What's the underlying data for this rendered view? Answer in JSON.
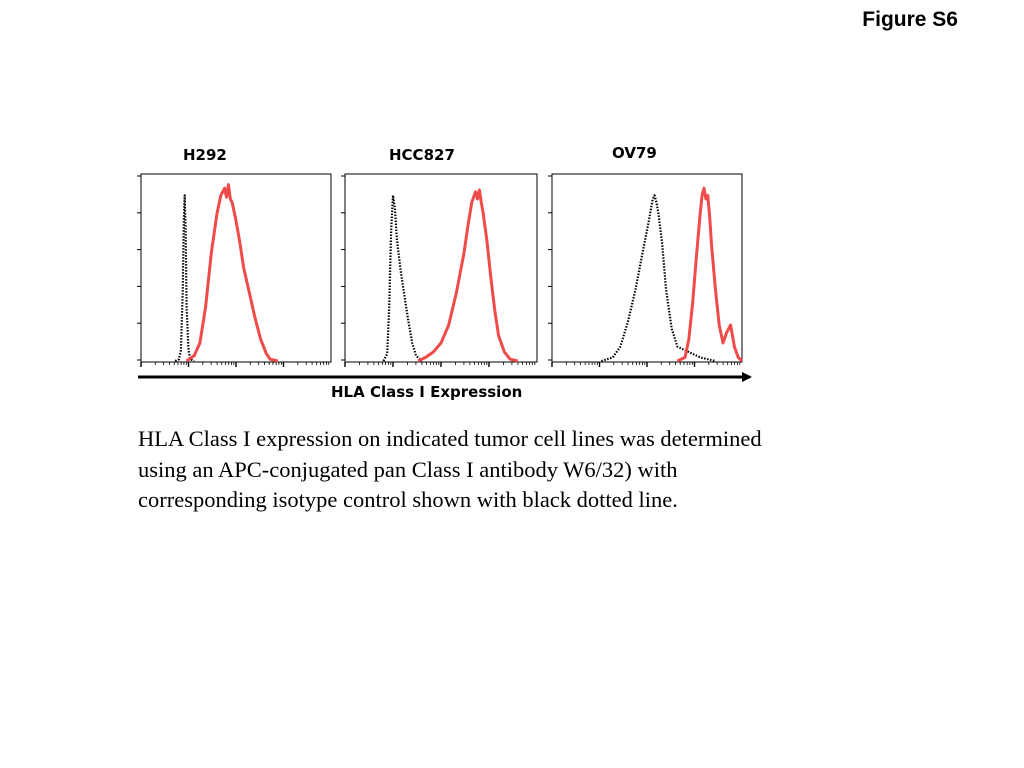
{
  "figure_label": "Figure S6",
  "caption": "HLA Class I expression on indicated tumor cell lines was determined using an APC-conjugated pan Class I antibody W6/32) with corresponding isotype control shown with black dotted line.",
  "colors": {
    "stained": "#f04b4b",
    "isotype": "#000000",
    "axis": "#000000"
  },
  "chart_data": [
    {
      "type": "line",
      "title": "H292",
      "xlabel": "HLA Class I Expression",
      "ylabel": "",
      "xlim": [
        0,
        100
      ],
      "ylim": [
        0,
        100
      ],
      "series": [
        {
          "name": "isotype control",
          "style": "dotted",
          "x": [
            18,
            20,
            21,
            22,
            22.5,
            23,
            23.5,
            24,
            25,
            26,
            28
          ],
          "y": [
            0,
            1,
            6,
            40,
            78,
            92,
            70,
            30,
            6,
            1,
            0
          ]
        },
        {
          "name": "HLA Class I",
          "style": "solid",
          "x": [
            24,
            28,
            31,
            34,
            37,
            40,
            42,
            44,
            45,
            46,
            47,
            48,
            50,
            52,
            54,
            57,
            60,
            63,
            66,
            68,
            72
          ],
          "y": [
            0,
            3,
            10,
            30,
            60,
            82,
            92,
            96,
            91,
            98,
            90,
            88,
            78,
            66,
            52,
            38,
            24,
            12,
            4,
            1,
            0
          ]
        }
      ]
    },
    {
      "type": "line",
      "title": "HCC827",
      "xlabel": "HLA Class I Expression",
      "ylabel": "",
      "xlim": [
        0,
        100
      ],
      "ylim": [
        0,
        100
      ],
      "series": [
        {
          "name": "isotype control",
          "style": "dotted",
          "x": [
            20,
            22,
            23,
            24,
            25,
            26,
            27,
            29,
            31,
            33,
            35,
            37,
            40
          ],
          "y": [
            0,
            4,
            30,
            72,
            92,
            85,
            68,
            50,
            36,
            22,
            10,
            3,
            0
          ]
        },
        {
          "name": "HLA Class I",
          "style": "solid",
          "x": [
            38,
            42,
            46,
            50,
            54,
            58,
            62,
            64,
            66,
            68,
            69,
            70,
            71,
            72,
            74,
            76,
            78,
            80,
            83,
            86,
            90
          ],
          "y": [
            0,
            2,
            5,
            10,
            20,
            38,
            60,
            75,
            88,
            94,
            90,
            95,
            88,
            82,
            66,
            46,
            28,
            14,
            5,
            1,
            0
          ]
        }
      ]
    },
    {
      "type": "line",
      "title": "OV79",
      "xlabel": "HLA Class I Expression",
      "ylabel": "",
      "xlim": [
        0,
        100
      ],
      "ylim": [
        0,
        100
      ],
      "series": [
        {
          "name": "isotype control",
          "style": "dotted",
          "x": [
            26,
            32,
            36,
            40,
            44,
            48,
            51,
            53,
            54,
            55,
            56,
            58,
            60,
            63,
            66,
            70,
            74,
            78,
            82,
            86
          ],
          "y": [
            0,
            2,
            8,
            22,
            40,
            62,
            78,
            90,
            92,
            88,
            82,
            65,
            40,
            18,
            8,
            6,
            4,
            2,
            1,
            0
          ]
        },
        {
          "name": "HLA Class I",
          "style": "solid",
          "x": [
            66,
            70,
            72,
            74,
            76,
            78,
            79,
            80,
            81,
            82,
            83,
            84,
            86,
            88,
            90,
            92,
            94,
            96,
            98,
            100
          ],
          "y": [
            0,
            2,
            12,
            32,
            58,
            82,
            92,
            96,
            90,
            92,
            80,
            64,
            40,
            20,
            10,
            16,
            20,
            8,
            2,
            0
          ]
        }
      ]
    }
  ]
}
